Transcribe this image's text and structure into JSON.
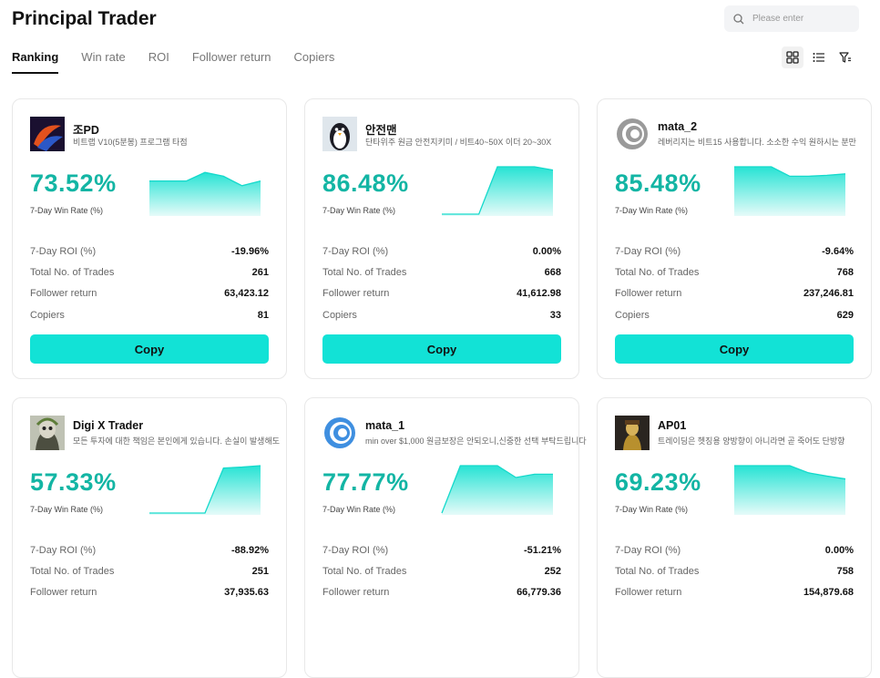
{
  "page": {
    "title": "Principal Trader",
    "search_placeholder": "Please enter",
    "tabs": [
      "Ranking",
      "Win rate",
      "ROI",
      "Follower return",
      "Copiers"
    ],
    "view_icons": [
      "grid-view-icon",
      "list-view-icon",
      "filter-icon"
    ]
  },
  "labels": {
    "win_rate": "7-Day Win Rate (%)",
    "roi": "7-Day ROI (%)",
    "trades": "Total No. of Trades",
    "follower_return": "Follower return",
    "copiers": "Copiers",
    "copy": "Copy"
  },
  "colors": {
    "accent": "#12e2d6",
    "rate_text": "#13b5a4"
  },
  "traders": [
    {
      "name": "조PD",
      "desc": "비트랩 V10(5분봉) 프로그램 타점",
      "win_rate": "73.52%",
      "roi": "-19.96%",
      "trades": "261",
      "follower_return": "63,423.12",
      "copiers": "81",
      "avatar": "dark-swirl-avatar",
      "spark": [
        0.7,
        0.7,
        0.7,
        0.88,
        0.8,
        0.6,
        0.7
      ]
    },
    {
      "name": "안전맨",
      "desc": "단타위주 원금 안전지키미 / 비트40~50X 이더 20~30X",
      "win_rate": "86.48%",
      "roi": "0.00%",
      "trades": "668",
      "follower_return": "41,612.98",
      "copiers": "33",
      "avatar": "penguin-avatar",
      "spark": [
        0.0,
        0.0,
        0.0,
        1.0,
        1.0,
        1.0,
        0.93
      ]
    },
    {
      "name": "mata_2",
      "desc": "레버리지는 비트15 사용합니다. 소소한 수익 원하시는 분만",
      "win_rate": "85.48%",
      "roi": "-9.64%",
      "trades": "768",
      "follower_return": "237,246.81",
      "copiers": "629",
      "avatar": "grey-spiral-avatar",
      "spark": [
        1.0,
        1.0,
        1.0,
        0.8,
        0.8,
        0.82,
        0.85
      ]
    },
    {
      "name": "Digi X Trader",
      "desc": "모든 투자에 대한 책임은 본인에게 있습니다. 손실이 발생해도",
      "win_rate": "57.33%",
      "roi": "-88.92%",
      "trades": "251",
      "follower_return": "37,935.63",
      "copiers": "",
      "avatar": "mask-avatar",
      "spark": [
        0.0,
        0.0,
        0.0,
        0.0,
        0.95,
        0.97,
        1.0
      ]
    },
    {
      "name": "mata_1",
      "desc": "min over $1,000 원금보장은 안되오니,신중한 선택 부탁드립니다",
      "win_rate": "77.77%",
      "roi": "-51.21%",
      "trades": "252",
      "follower_return": "66,779.36",
      "copiers": "",
      "avatar": "blue-spiral-avatar",
      "spark": [
        0.0,
        1.0,
        1.0,
        1.0,
        0.75,
        0.82,
        0.82
      ]
    },
    {
      "name": "AP01",
      "desc": "트레이딩은 헷징용 양방향이 아니라면 곧 죽어도 단방향",
      "win_rate": "69.23%",
      "roi": "0.00%",
      "trades": "758",
      "follower_return": "154,879.68",
      "copiers": "",
      "avatar": "gold-figure-avatar",
      "spark": [
        1.0,
        1.0,
        1.0,
        1.0,
        0.85,
        0.78,
        0.72
      ]
    }
  ]
}
